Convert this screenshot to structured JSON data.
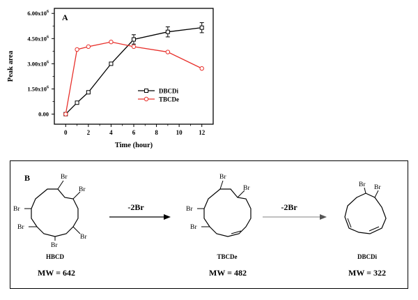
{
  "chart_data": {
    "type": "line",
    "panel_label": "A",
    "xlabel": "Time (hour)",
    "ylabel": "Peak area",
    "xlim": [
      -1,
      13
    ],
    "ylim": [
      -0.6,
      6.3
    ],
    "x_ticks": [
      "0",
      "2",
      "4",
      "6",
      "8",
      "10",
      "12"
    ],
    "y_ticks": [
      {
        "base": "0.00",
        "exp": ""
      },
      {
        "base": "1.50x10",
        "exp": "6"
      },
      {
        "base": "3.00x10",
        "exp": "6"
      },
      {
        "base": "4.50x10",
        "exp": "6"
      },
      {
        "base": "6.00x10",
        "exp": "6"
      }
    ],
    "legend_position": "lower-right",
    "series": [
      {
        "name": "DBCDi",
        "color": "#000000",
        "marker": "square-open",
        "x": [
          0,
          1,
          2,
          4,
          6,
          9,
          12
        ],
        "y": [
          0.0,
          0.68,
          1.3,
          3.0,
          4.45,
          4.9,
          5.15
        ],
        "err": [
          0,
          0.05,
          0.05,
          0.05,
          0.28,
          0.3,
          0.3
        ]
      },
      {
        "name": "TBCDe",
        "color": "#e8302b",
        "marker": "circle-open",
        "x": [
          0,
          1,
          2,
          4,
          6,
          9,
          12
        ],
        "y": [
          0.0,
          3.85,
          4.02,
          4.3,
          4.02,
          3.7,
          2.72
        ],
        "err": [
          0,
          0,
          0,
          0,
          0,
          0,
          0
        ]
      }
    ]
  },
  "scheme": {
    "panel_label": "B",
    "arrow1_label": "-2Br",
    "arrow2_label": "-2Br",
    "compounds": [
      {
        "name": "HBCD",
        "mw": "MW = 642"
      },
      {
        "name": "TBCDe",
        "mw": "MW = 482"
      },
      {
        "name": "DBCDi",
        "mw": "MW = 322"
      }
    ],
    "substituent": "Br"
  }
}
